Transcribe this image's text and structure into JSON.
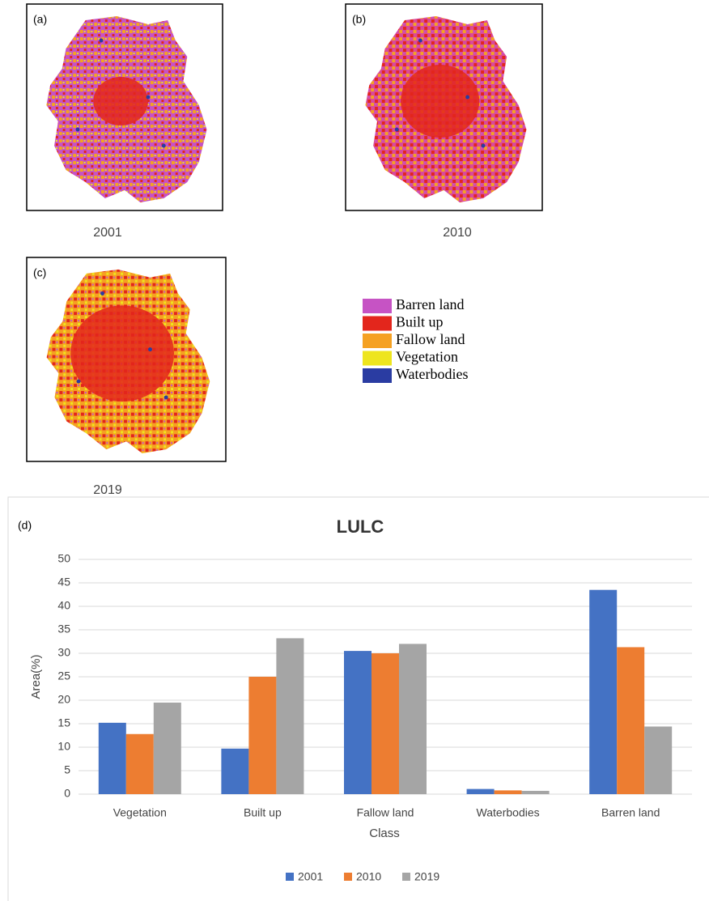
{
  "maps": [
    {
      "label": "(a)",
      "year": "2001"
    },
    {
      "label": "(b)",
      "year": "2010"
    },
    {
      "label": "(c)",
      "year": "2019"
    }
  ],
  "map_legend": [
    {
      "name": "Barren land",
      "color": "#c653c4"
    },
    {
      "name": "Built up",
      "color": "#e3261c"
    },
    {
      "name": "Fallow land",
      "color": "#f5a122"
    },
    {
      "name": "Vegetation",
      "color": "#eee51e"
    },
    {
      "name": "Waterbodies",
      "color": "#2a3ca2"
    }
  ],
  "chart_data": {
    "type": "bar",
    "panel_label": "(d)",
    "title": "LULC",
    "x_label": "Class",
    "y_label": "Area(%)",
    "categories": [
      "Vegetation",
      "Built up",
      "Fallow land",
      "Waterbodies",
      "Barren land"
    ],
    "series": [
      {
        "name": "2001",
        "color": "#4472c4",
        "values": [
          15.2,
          9.7,
          30.5,
          1.1,
          43.5
        ]
      },
      {
        "name": "2010",
        "color": "#ed7d31",
        "values": [
          12.8,
          25.0,
          30.0,
          0.8,
          31.3
        ]
      },
      {
        "name": "2019",
        "color": "#a5a5a5",
        "values": [
          19.5,
          33.2,
          32.0,
          0.7,
          14.4
        ]
      }
    ],
    "ylim": [
      0,
      50
    ],
    "yticks": [
      0,
      5,
      10,
      15,
      20,
      25,
      30,
      35,
      40,
      45,
      50
    ],
    "grid": true
  }
}
